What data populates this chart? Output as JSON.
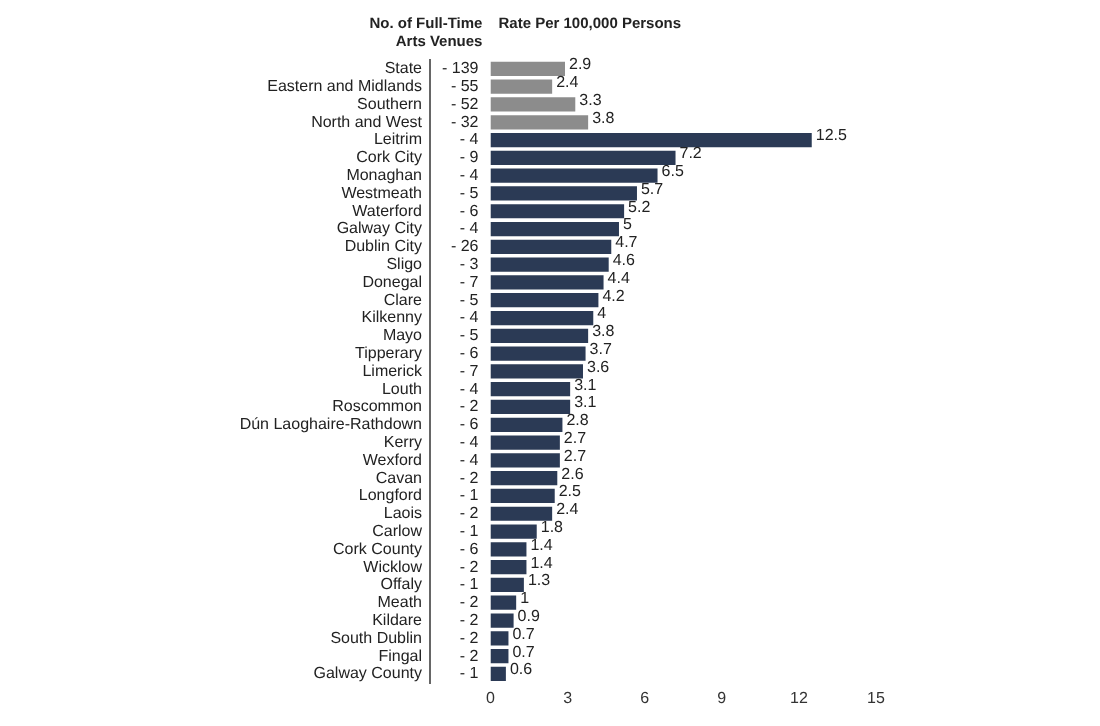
{
  "chart_data": {
    "type": "bar",
    "orientation": "horizontal",
    "xlabel": "Rate Per 100,000 Persons",
    "y2label": "No. of Full-Time Arts Venues",
    "categories": [
      "State",
      "Eastern and Midlands",
      "Southern",
      "North and West",
      "Leitrim",
      "Cork City",
      "Monaghan",
      "Westmeath",
      "Waterford",
      "Galway City",
      "Dublin City",
      "Sligo",
      "Donegal",
      "Clare",
      "Kilkenny",
      "Mayo",
      "Tipperary",
      "Limerick",
      "Louth",
      "Roscommon",
      "Dún Laoghaire-Rathdown",
      "Kerry",
      "Wexford",
      "Cavan",
      "Longford",
      "Laois",
      "Carlow",
      "Cork County",
      "Wicklow",
      "Offaly",
      "Meath",
      "Kildare",
      "South Dublin",
      "Fingal",
      "Galway County"
    ],
    "y2_categories": [
      "- 139",
      "- 55",
      "- 52",
      "- 32",
      "- 4",
      "- 9",
      "- 4",
      "- 5",
      "- 6",
      "- 4",
      "- 26",
      "- 3",
      "- 7",
      "- 5",
      "- 4",
      "- 5",
      "- 6",
      "- 7",
      "- 4",
      "- 2",
      "- 6",
      "- 4",
      "- 4",
      "- 2",
      "- 1",
      "- 2",
      "- 1",
      "- 6",
      "- 2",
      "- 1",
      "- 2",
      "- 2",
      "- 2",
      "- 2",
      "- 1"
    ],
    "values": [
      2.9,
      2.4,
      3.3,
      3.8,
      12.5,
      7.2,
      6.5,
      5.7,
      5.2,
      5,
      4.7,
      4.6,
      4.4,
      4.2,
      4,
      3.8,
      3.7,
      3.6,
      3.1,
      3.1,
      2.8,
      2.7,
      2.7,
      2.6,
      2.5,
      2.4,
      1.8,
      1.4,
      1.4,
      1.3,
      1,
      0.9,
      0.7,
      0.7,
      0.6
    ],
    "colors": [
      "#8c8c8c",
      "#8c8c8c",
      "#8c8c8c",
      "#8c8c8c",
      "#2b3a55",
      "#2b3a55",
      "#2b3a55",
      "#2b3a55",
      "#2b3a55",
      "#2b3a55",
      "#2b3a55",
      "#2b3a55",
      "#2b3a55",
      "#2b3a55",
      "#2b3a55",
      "#2b3a55",
      "#2b3a55",
      "#2b3a55",
      "#2b3a55",
      "#2b3a55",
      "#2b3a55",
      "#2b3a55",
      "#2b3a55",
      "#2b3a55",
      "#2b3a55",
      "#2b3a55",
      "#2b3a55",
      "#2b3a55",
      "#2b3a55",
      "#2b3a55",
      "#2b3a55",
      "#2b3a55",
      "#2b3a55",
      "#2b3a55",
      "#2b3a55"
    ],
    "xlim": [
      0,
      15
    ],
    "xticks": [
      0,
      3,
      6,
      9,
      12,
      15
    ],
    "data_labels": true,
    "grid": false,
    "legend": false
  }
}
